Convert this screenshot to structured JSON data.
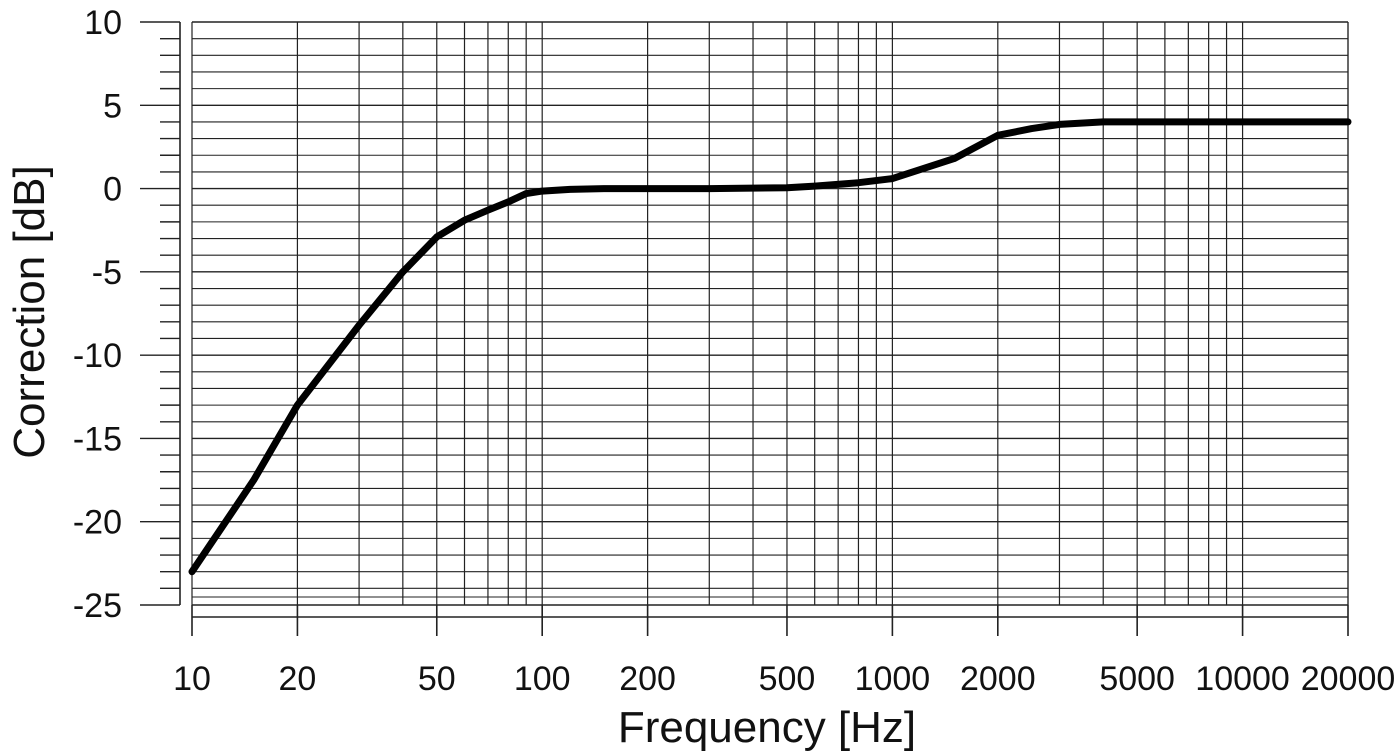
{
  "chart_data": {
    "type": "line",
    "title": "",
    "xlabel": "Frequency [Hz]",
    "ylabel": "Correction [dB]",
    "x_scale": "log",
    "xlim": [
      10,
      20000
    ],
    "ylim": [
      -25,
      10
    ],
    "grid": true,
    "x_ticks": [
      10,
      20,
      50,
      100,
      200,
      500,
      1000,
      2000,
      5000,
      10000,
      20000
    ],
    "x_tick_labels": [
      "10",
      "20",
      "50",
      "100",
      "200",
      "500",
      "1000",
      "2000",
      "5000",
      "10000",
      "20000"
    ],
    "y_ticks": [
      10,
      5,
      0,
      -5,
      -10,
      -15,
      -20,
      -25
    ],
    "y_tick_labels": [
      "10",
      "5",
      "0",
      "-5",
      "-10",
      "-15",
      "-20",
      "-25"
    ],
    "series": [
      {
        "x": [
          10,
          15,
          20,
          30,
          40,
          50,
          60,
          70,
          80,
          90,
          100,
          120,
          150,
          200,
          300,
          500,
          600,
          800,
          1000,
          1500,
          2000,
          2500,
          3000,
          4000,
          5000,
          10000,
          20000
        ],
        "y": [
          -23,
          -17.5,
          -13,
          -8.2,
          -5.0,
          -2.9,
          -1.9,
          -1.3,
          -0.8,
          -0.3,
          -0.15,
          -0.05,
          0,
          0,
          0,
          0.05,
          0.15,
          0.35,
          0.6,
          1.8,
          3.2,
          3.6,
          3.85,
          4.0,
          4.0,
          4.0,
          4.0
        ]
      }
    ]
  }
}
